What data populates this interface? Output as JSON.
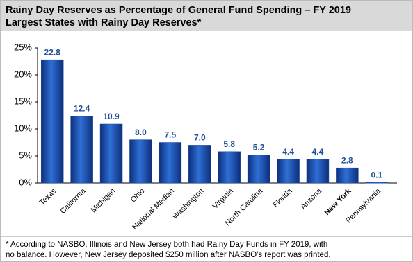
{
  "chart_data": {
    "type": "bar",
    "title": "Rainy Day Reserves as Percentage of General Fund Spending – FY 2019",
    "subtitle": "Largest States with Rainy Day Reserves*",
    "categories": [
      "Texas",
      "California",
      "Michigan",
      "Ohio",
      "National Median",
      "Washington",
      "Virginia",
      "North Carolina",
      "Florida",
      "Arizona",
      "New York",
      "Pennsylvania"
    ],
    "values": [
      22.8,
      12.4,
      10.9,
      8.0,
      7.5,
      7.0,
      5.8,
      5.2,
      4.4,
      4.4,
      2.8,
      0.1
    ],
    "value_labels": [
      "22.8",
      "12.4",
      "10.9",
      "8.0",
      "7.5",
      "7.0",
      "5.8",
      "5.2",
      "4.4",
      "4.4",
      "2.8",
      "0.1"
    ],
    "color": "#1f4fa8",
    "bold_category_index": 10,
    "ylim": [
      0,
      25
    ],
    "yticks": [
      {
        "value": 0,
        "label": "0%"
      },
      {
        "value": 5,
        "label": "5%"
      },
      {
        "value": 10,
        "label": "10%"
      },
      {
        "value": 15,
        "label": "15%"
      },
      {
        "value": 20,
        "label": "20%"
      },
      {
        "value": 25,
        "label": "25%"
      }
    ],
    "grid": false,
    "footnote": [
      "* According to NASBO, Illinois and New Jersey both had Rainy Day Funds in FY 2019, with",
      "no balance. However, New Jersey deposited $250 million after NASBO's report was printed."
    ]
  }
}
